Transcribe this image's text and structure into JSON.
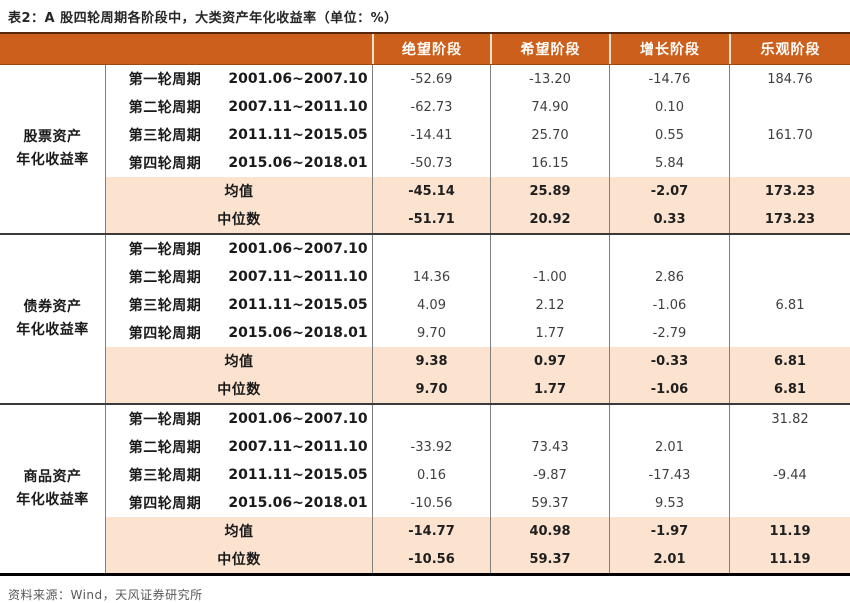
{
  "title": "表2：A 股四轮周期各阶段中，大类资产年化收益率（单位：%）",
  "source": "资料来源：Wind，天风证券研究所",
  "colors": {
    "header_bg": "#CC5F1B",
    "header_text": "#FFFFFF",
    "summary_row_bg": "#FBE3D0",
    "section_divider": "#3A3A3A",
    "cell_border": "#7F7F7F"
  },
  "table": {
    "phase_headers": [
      "绝望阶段",
      "希望阶段",
      "增长阶段",
      "乐观阶段"
    ],
    "sections": [
      {
        "label_lines": [
          "股票资产",
          "年化收益率"
        ],
        "rows": [
          {
            "cycle": "第一轮周期",
            "period": "2001.06~2007.10",
            "values": [
              "-52.69",
              "-13.20",
              "-14.76",
              "184.76"
            ]
          },
          {
            "cycle": "第二轮周期",
            "period": "2007.11~2011.10",
            "values": [
              "-62.73",
              "74.90",
              "0.10",
              ""
            ]
          },
          {
            "cycle": "第三轮周期",
            "period": "2011.11~2015.05",
            "values": [
              "-14.41",
              "25.70",
              "0.55",
              "161.70"
            ]
          },
          {
            "cycle": "第四轮周期",
            "period": "2015.06~2018.01",
            "values": [
              "-50.73",
              "16.15",
              "5.84",
              ""
            ]
          }
        ],
        "mean": {
          "label": "均值",
          "values": [
            "-45.14",
            "25.89",
            "-2.07",
            "173.23"
          ]
        },
        "median": {
          "label": "中位数",
          "values": [
            "-51.71",
            "20.92",
            "0.33",
            "173.23"
          ]
        }
      },
      {
        "label_lines": [
          "债券资产",
          "年化收益率"
        ],
        "rows": [
          {
            "cycle": "第一轮周期",
            "period": "2001.06~2007.10",
            "values": [
              "",
              "",
              "",
              ""
            ]
          },
          {
            "cycle": "第二轮周期",
            "period": "2007.11~2011.10",
            "values": [
              "14.36",
              "-1.00",
              "2.86",
              ""
            ]
          },
          {
            "cycle": "第三轮周期",
            "period": "2011.11~2015.05",
            "values": [
              "4.09",
              "2.12",
              "-1.06",
              "6.81"
            ]
          },
          {
            "cycle": "第四轮周期",
            "period": "2015.06~2018.01",
            "values": [
              "9.70",
              "1.77",
              "-2.79",
              ""
            ]
          }
        ],
        "mean": {
          "label": "均值",
          "values": [
            "9.38",
            "0.97",
            "-0.33",
            "6.81"
          ]
        },
        "median": {
          "label": "中位数",
          "values": [
            "9.70",
            "1.77",
            "-1.06",
            "6.81"
          ]
        }
      },
      {
        "label_lines": [
          "商品资产",
          "年化收益率"
        ],
        "rows": [
          {
            "cycle": "第一轮周期",
            "period": "2001.06~2007.10",
            "values": [
              "",
              "",
              "",
              "31.82"
            ]
          },
          {
            "cycle": "第二轮周期",
            "period": "2007.11~2011.10",
            "values": [
              "-33.92",
              "73.43",
              "2.01",
              ""
            ]
          },
          {
            "cycle": "第三轮周期",
            "period": "2011.11~2015.05",
            "values": [
              "0.16",
              "-9.87",
              "-17.43",
              "-9.44"
            ]
          },
          {
            "cycle": "第四轮周期",
            "period": "2015.06~2018.01",
            "values": [
              "-10.56",
              "59.37",
              "9.53",
              ""
            ]
          }
        ],
        "mean": {
          "label": "均值",
          "values": [
            "-14.77",
            "40.98",
            "-1.97",
            "11.19"
          ]
        },
        "median": {
          "label": "中位数",
          "values": [
            "-10.56",
            "59.37",
            "2.01",
            "11.19"
          ]
        }
      }
    ]
  }
}
